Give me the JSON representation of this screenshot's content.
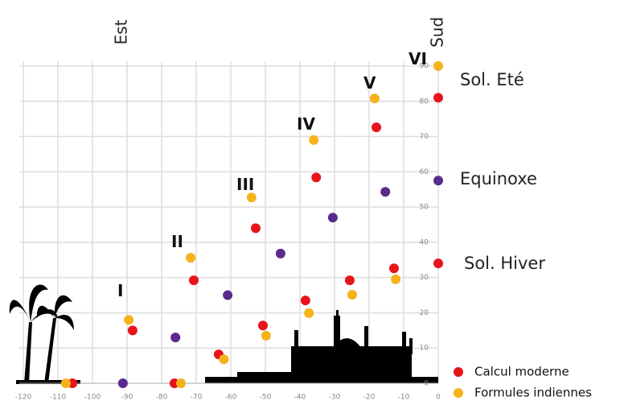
{
  "chart_data": {
    "type": "scatter",
    "xlim": [
      -120,
      0
    ],
    "ylim": [
      0,
      90
    ],
    "xticks": [
      -120,
      -110,
      -100,
      -90,
      -80,
      -70,
      -60,
      -50,
      -40,
      -30,
      -20,
      -10,
      0
    ],
    "yticks": [
      0,
      10,
      20,
      30,
      40,
      50,
      60,
      70,
      80,
      90
    ],
    "grid": true,
    "top_labels": [
      "Est",
      "Sud"
    ],
    "annotations": [
      "I",
      "II",
      "III",
      "IV",
      "V",
      "VI"
    ],
    "side_labels": [
      "Sol. Eté",
      "Equinoxe",
      "Sol. Hiver"
    ],
    "series": [
      {
        "name": "Calcul moderne",
        "color": "#e8141c",
        "x": [
          -105.8,
          -88.4,
          -70.7,
          -52.8,
          -35.3,
          -17.9,
          0,
          -76.3,
          -63.5,
          -50.7,
          -38.4,
          -25.6,
          -12.8,
          0
        ],
        "values": [
          0,
          15,
          29.2,
          44,
          58.4,
          72.6,
          81,
          0,
          8.2,
          16.4,
          23.5,
          29.2,
          32.6,
          34
        ]
      },
      {
        "name": "Formules indiennes",
        "color": "#f5b21b",
        "x": [
          -107.7,
          -89.5,
          -71.6,
          -54,
          -36,
          -18.4,
          0,
          -74.4,
          -62,
          -49.8,
          -37.4,
          -24.9,
          -12.3
        ],
        "values": [
          0,
          18,
          35.6,
          52.7,
          69,
          80.8,
          90,
          0,
          6.8,
          13.5,
          19.9,
          25.1,
          29.5
        ]
      },
      {
        "color": "#5b2a8c",
        "x": [
          -91.2,
          -76,
          -60.9,
          -45.6,
          -30.5,
          -15.3,
          0
        ],
        "values": [
          0,
          13,
          25,
          36.8,
          47,
          54.3,
          57.5
        ]
      }
    ]
  }
}
